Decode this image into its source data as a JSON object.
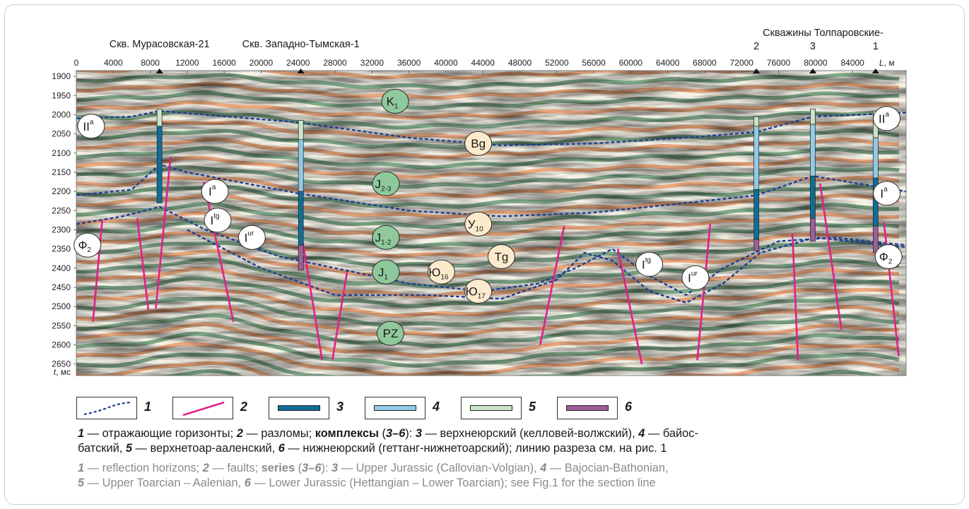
{
  "figure": {
    "wells_top": [
      {
        "label": "Скв. Мурасовская-21",
        "x_m": 9000
      },
      {
        "label": "Скв. Западно-Тымская-1",
        "x_m": 24300
      }
    ],
    "well_group_label": "Скважины Толпаровские-",
    "well_group": [
      {
        "num": "2",
        "x_m": 73600
      },
      {
        "num": "3",
        "x_m": 79700
      },
      {
        "num": "1",
        "x_m": 86500
      }
    ],
    "x_axis": {
      "label_var": "L",
      "label_unit": ", м",
      "ticks": [
        0,
        4000,
        8000,
        12000,
        16000,
        20000,
        24000,
        28000,
        32000,
        36000,
        40000,
        44000,
        48000,
        52000,
        56000,
        60000,
        64000,
        68000,
        72000,
        76000,
        80000,
        84000
      ],
      "range": [
        0,
        89800
      ]
    },
    "y_axis": {
      "label_var": "t",
      "label_unit": ", мс",
      "ticks": [
        1900,
        1950,
        2000,
        2050,
        2100,
        2150,
        2200,
        2250,
        2300,
        2350,
        2400,
        2450,
        2500,
        2550,
        2600,
        2650
      ],
      "range": [
        1885,
        2680
      ]
    },
    "horizon_labels": [
      {
        "base": "K",
        "sub": "1",
        "sup": "",
        "x_m": 34500,
        "t": 1965,
        "style": "green"
      },
      {
        "base": "Bg",
        "sub": "",
        "sup": "",
        "x_m": 43500,
        "t": 2075,
        "style": "cream"
      },
      {
        "base": "J",
        "sub": "2-3",
        "sup": "",
        "x_m": 33500,
        "t": 2180,
        "style": "green"
      },
      {
        "base": "У",
        "sub": "10",
        "sup": "",
        "x_m": 43500,
        "t": 2285,
        "style": "cream"
      },
      {
        "base": "J",
        "sub": "1-2",
        "sup": "",
        "x_m": 33500,
        "t": 2320,
        "style": "green"
      },
      {
        "base": "Tg",
        "sub": "",
        "sup": "",
        "x_m": 46000,
        "t": 2370,
        "style": "cream"
      },
      {
        "base": "Ю",
        "sub": "16",
        "sup": "",
        "x_m": 39500,
        "t": 2410,
        "style": "cream"
      },
      {
        "base": "J",
        "sub": "1",
        "sup": "",
        "x_m": 33500,
        "t": 2410,
        "style": "green"
      },
      {
        "base": "Ю",
        "sub": "17",
        "sup": "",
        "x_m": 43500,
        "t": 2460,
        "style": "cream"
      },
      {
        "base": "PZ",
        "sub": "",
        "sup": "",
        "x_m": 34000,
        "t": 2570,
        "style": "green"
      },
      {
        "base": "II",
        "sub": "",
        "sup": "a",
        "x_m": 1600,
        "t": 2030,
        "style": "white"
      },
      {
        "base": "I",
        "sub": "",
        "sup": "a",
        "x_m": 15000,
        "t": 2200,
        "style": "white"
      },
      {
        "base": "I",
        "sub": "",
        "sup": "tg",
        "x_m": 15300,
        "t": 2275,
        "style": "white"
      },
      {
        "base": "I",
        "sub": "",
        "sup": "ur",
        "x_m": 19000,
        "t": 2320,
        "style": "white"
      },
      {
        "base": "Ф",
        "sub": "2",
        "sup": "",
        "x_m": 1200,
        "t": 2340,
        "style": "white"
      },
      {
        "base": "I",
        "sub": "",
        "sup": "tg",
        "x_m": 62000,
        "t": 2390,
        "style": "white"
      },
      {
        "base": "I",
        "sub": "",
        "sup": "ur",
        "x_m": 67000,
        "t": 2425,
        "style": "white"
      },
      {
        "base": "II",
        "sub": "",
        "sup": "a",
        "x_m": 87700,
        "t": 2010,
        "style": "white"
      },
      {
        "base": "I",
        "sub": "",
        "sup": "a",
        "x_m": 87700,
        "t": 2205,
        "style": "white"
      },
      {
        "base": "Ф",
        "sub": "2",
        "sup": "",
        "x_m": 87900,
        "t": 2370,
        "style": "white"
      }
    ]
  },
  "legend": {
    "items": [
      {
        "num": "1",
        "kind": "horizon",
        "color": "#1f3f94"
      },
      {
        "num": "2",
        "kind": "fault",
        "color": "#e0208a"
      },
      {
        "num": "3",
        "kind": "bar",
        "color": "#0f6d97"
      },
      {
        "num": "4",
        "kind": "bar",
        "color": "#8fcbe8"
      },
      {
        "num": "5",
        "kind": "bar",
        "color": "#c9e4c9"
      },
      {
        "num": "6",
        "kind": "bar",
        "color": "#9f5d9c"
      }
    ]
  },
  "caption_ru": {
    "n1": "1",
    "t1": " — отражающие горизонты; ",
    "n2": "2",
    "t2": " — разломы; ",
    "series": "комплексы",
    "p_open": " (",
    "range": "3–6",
    "p_close": "): ",
    "n3": "3",
    "t3": " — верхнеюрский (келловей-волжский), ",
    "n4": "4",
    "t4": " — байос-",
    "l2a": "батский, ",
    "n5": "5",
    "t5": " — верхнетоар-ааленский, ",
    "n6": "6",
    "t6": " — нижнеюрский (геттанг-нижнетоарский); линию разреза см. на рис. 1"
  },
  "caption_en": {
    "n1": "1",
    "t1": " — reflection horizons; ",
    "n2": "2",
    "t2": " — faults; ",
    "series": "series",
    "p_open": " (",
    "range": "3–6",
    "p_close": "): ",
    "n3": "3",
    "t3": " — Upper Jurassic (Callovian-Volgian), ",
    "n4": "4",
    "t4": " — Bajocian-Bathonian,",
    "n5": "5",
    "t5": " — Upper Toarcian – Aalenian, ",
    "n6": "6",
    "t6": " — Lower Jurassic (Hettangian – Lower Toarcian); see Fig.1 for the section line"
  },
  "colors": {
    "seis_orange": "#e8702a",
    "seis_green": "#1f6b3a",
    "horizon": "#1f3f94",
    "fault": "#e0208a"
  }
}
